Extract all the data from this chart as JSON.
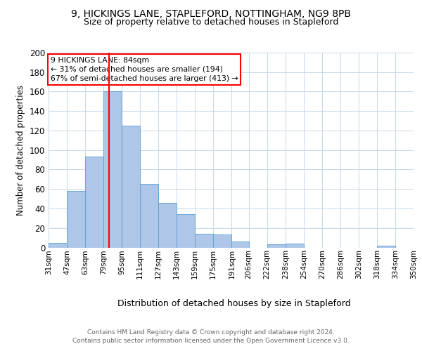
{
  "title1": "9, HICKINGS LANE, STAPLEFORD, NOTTINGHAM, NG9 8PB",
  "title2": "Size of property relative to detached houses in Stapleford",
  "xlabel": "Distribution of detached houses by size in Stapleford",
  "ylabel": "Number of detached properties",
  "footer1": "Contains HM Land Registry data © Crown copyright and database right 2024.",
  "footer2": "Contains public sector information licensed under the Open Government Licence v3.0.",
  "annotation_line1": "9 HICKINGS LANE: 84sqm",
  "annotation_line2": "← 31% of detached houses are smaller (194)",
  "annotation_line3": "67% of semi-detached houses are larger (413) →",
  "bar_left_edges": [
    31,
    47,
    63,
    79,
    95,
    111,
    127,
    143,
    159,
    175,
    191,
    206,
    222,
    238,
    254,
    270,
    286,
    302,
    318,
    334
  ],
  "bar_widths": [
    16,
    16,
    16,
    16,
    16,
    16,
    16,
    16,
    16,
    16,
    15,
    16,
    16,
    16,
    16,
    16,
    16,
    16,
    16,
    16
  ],
  "bar_heights": [
    5,
    58,
    93,
    160,
    125,
    65,
    46,
    34,
    14,
    13,
    6,
    0,
    3,
    4,
    0,
    0,
    0,
    0,
    2,
    0
  ],
  "tick_labels": [
    "31sqm",
    "47sqm",
    "63sqm",
    "79sqm",
    "95sqm",
    "111sqm",
    "127sqm",
    "143sqm",
    "159sqm",
    "175sqm",
    "191sqm",
    "206sqm",
    "222sqm",
    "238sqm",
    "254sqm",
    "270sqm",
    "286sqm",
    "302sqm",
    "318sqm",
    "334sqm",
    "350sqm"
  ],
  "bar_color": "#aec6e8",
  "bar_edge_color": "#5a9fd4",
  "red_line_x": 84,
  "ylim": [
    0,
    200
  ],
  "xlim": [
    31,
    350
  ],
  "yticks": [
    0,
    20,
    40,
    60,
    80,
    100,
    120,
    140,
    160,
    180,
    200
  ],
  "background_color": "#ffffff",
  "grid_color": "#c8d8e8"
}
